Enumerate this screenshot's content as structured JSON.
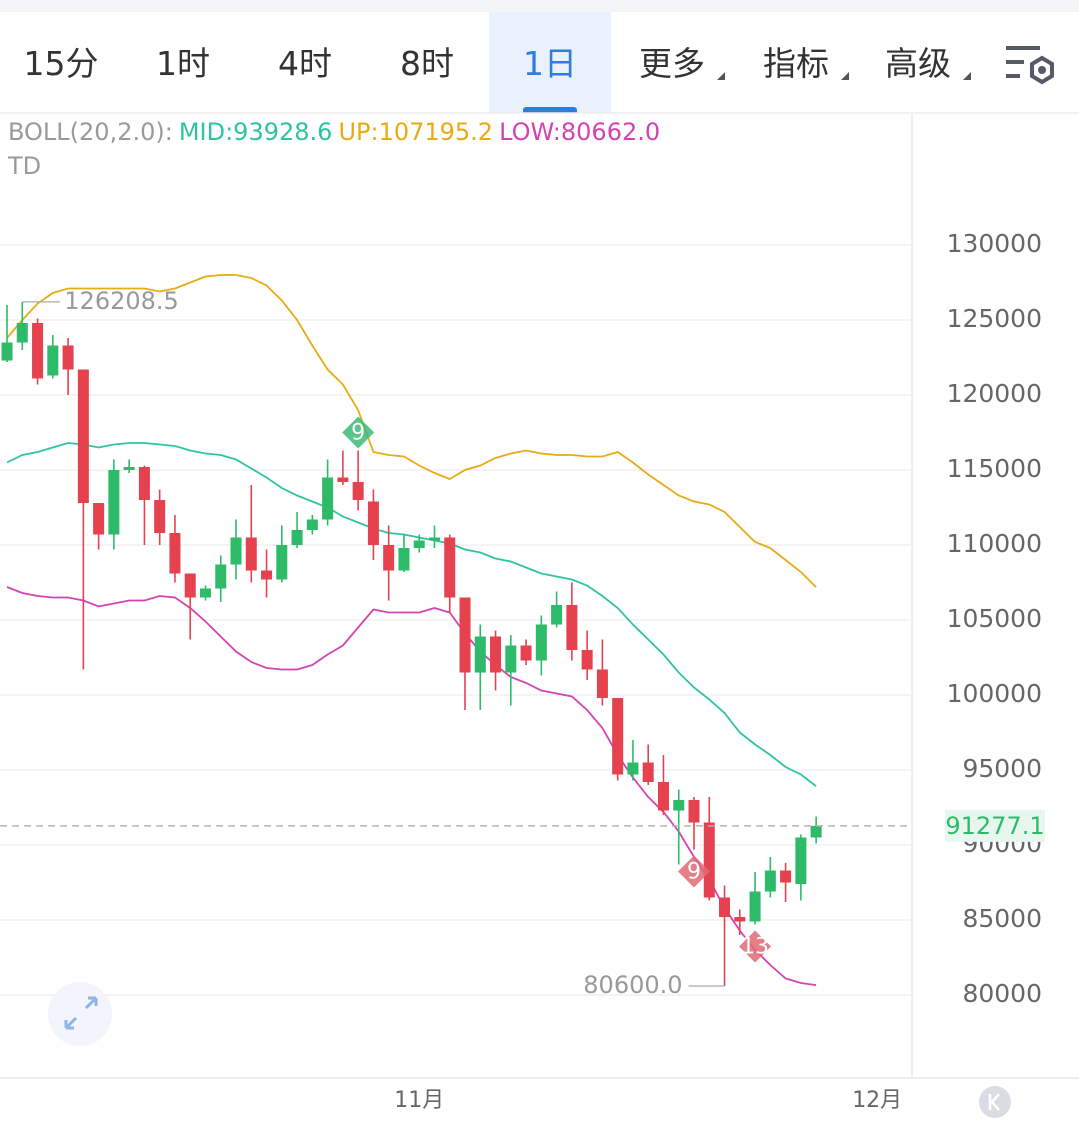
{
  "tabs": [
    "15分",
    "1时",
    "4时",
    "8时",
    "1日",
    "更多",
    "指标",
    "高级"
  ],
  "active_tab": 4,
  "chart_data": {
    "type": "candlestick",
    "indicator_label": "BOLL(20,2.0):",
    "td_label": "TD",
    "x": [
      0,
      1,
      2,
      3,
      4,
      5,
      6,
      7,
      8,
      9,
      10,
      11,
      12,
      13,
      14,
      15,
      16,
      17,
      18,
      19,
      20,
      21,
      22,
      23,
      24,
      25,
      26,
      27,
      28,
      29,
      30,
      31,
      32,
      33,
      34,
      35,
      36,
      37,
      38,
      39,
      40,
      41,
      42,
      43,
      44,
      45,
      46,
      47,
      48,
      49,
      50,
      51,
      52,
      53
    ],
    "xlim": [
      -0.46,
      59.28
    ],
    "xticks": [
      {
        "value": 27,
        "label": "11月"
      },
      {
        "value": 57,
        "label": "12月"
      }
    ],
    "open": [
      122300,
      123500,
      124800,
      121300,
      123300,
      121700,
      112800,
      110700,
      115000,
      115200,
      113000,
      110800,
      108100,
      106500,
      107100,
      108700,
      110500,
      108300,
      107700,
      110000,
      111000,
      111700,
      114500,
      114200,
      112900,
      110000,
      108300,
      109800,
      110300,
      110500,
      106500,
      101500,
      103900,
      101500,
      103300,
      102300,
      104700,
      106000,
      103000,
      101700,
      99800,
      94700,
      95500,
      94200,
      92300,
      93000,
      91500,
      86500,
      85200,
      84900,
      86900,
      88300,
      87400,
      90500
    ],
    "high": [
      126000,
      126208.5,
      125100,
      124000,
      123800,
      121700,
      112800,
      115700,
      115700,
      115300,
      113700,
      112000,
      108100,
      107300,
      109300,
      111700,
      114000,
      109700,
      111300,
      112200,
      112000,
      115700,
      116300,
      116300,
      113700,
      111300,
      110700,
      110700,
      111300,
      110700,
      106500,
      104700,
      104300,
      104000,
      103700,
      105300,
      106900,
      107500,
      104300,
      103700,
      99800,
      97000,
      96700,
      96000,
      93700,
      93200,
      93200,
      87300,
      85700,
      88200,
      89200,
      88800,
      90700,
      91900
    ],
    "low": [
      122200,
      123000,
      120700,
      121100,
      120000,
      101700,
      109700,
      109700,
      114800,
      110000,
      110000,
      107500,
      103700,
      106300,
      106200,
      107700,
      107500,
      106500,
      107500,
      109800,
      110700,
      111300,
      114000,
      112300,
      109000,
      106300,
      108200,
      109500,
      109800,
      105500,
      99000,
      99000,
      100300,
      99300,
      102000,
      101300,
      104500,
      102300,
      101000,
      99300,
      94300,
      94300,
      94000,
      92000,
      88700,
      89700,
      86300,
      80600,
      84000,
      84700,
      86500,
      86200,
      86300,
      90100
    ],
    "close": [
      123500,
      124800,
      121100,
      123300,
      121700,
      112800,
      110700,
      115000,
      115200,
      113000,
      110800,
      108100,
      106500,
      107100,
      108700,
      110500,
      108300,
      107700,
      110000,
      111000,
      111700,
      114500,
      114200,
      113000,
      110000,
      108300,
      109800,
      110300,
      110500,
      106500,
      101500,
      103900,
      101500,
      103300,
      102300,
      104700,
      106000,
      103000,
      101700,
      99800,
      94700,
      95500,
      94200,
      92300,
      93000,
      91500,
      86500,
      85200,
      84900,
      86900,
      88300,
      87500,
      90500,
      91277.1
    ],
    "up_color": "#2dbb6a",
    "down_color": "#e5414f",
    "series": [
      {
        "name": "MID:93928.6",
        "color": "#2ec4a0",
        "values": [
          115500,
          116000,
          116200,
          116500,
          116800,
          116700,
          116500,
          116700,
          116800,
          116800,
          116700,
          116600,
          116300,
          116100,
          116000,
          115700,
          115100,
          114500,
          113800,
          113300,
          112900,
          112500,
          111900,
          111500,
          111100,
          110800,
          110700,
          110500,
          110300,
          110100,
          109700,
          109500,
          109100,
          108900,
          108500,
          108100,
          107900,
          107700,
          107300,
          106600,
          105800,
          104700,
          103700,
          102700,
          101500,
          100500,
          99700,
          98800,
          97500,
          96700,
          96000,
          95200,
          94700,
          93928.6
        ]
      },
      {
        "name": "UP:107195.2",
        "color": "#e9ab12",
        "values": [
          123800,
          125000,
          126100,
          126800,
          127100,
          127100,
          127100,
          127100,
          127100,
          127100,
          126900,
          127100,
          127500,
          127900,
          128000,
          128000,
          127800,
          127300,
          126300,
          125000,
          123300,
          121700,
          120700,
          119000,
          116200,
          116000,
          115900,
          115300,
          114800,
          114400,
          115000,
          115300,
          115800,
          116100,
          116300,
          116100,
          116000,
          116000,
          115900,
          115900,
          116200,
          115500,
          114700,
          114000,
          113300,
          112900,
          112700,
          112200,
          111200,
          110200,
          109800,
          109000,
          108200,
          107195.2
        ]
      },
      {
        "name": "LOW:80662.0",
        "color": "#d543b2",
        "values": [
          107200,
          106800,
          106600,
          106500,
          106500,
          106300,
          105900,
          106100,
          106300,
          106300,
          106600,
          106500,
          105800,
          104900,
          103900,
          102900,
          102200,
          101800,
          101700,
          101700,
          102000,
          102700,
          103300,
          104500,
          105700,
          105500,
          105500,
          105500,
          105800,
          105500,
          104100,
          102900,
          102000,
          101200,
          100800,
          100300,
          100100,
          99900,
          99000,
          97800,
          96000,
          94500,
          93200,
          92200,
          90900,
          89200,
          87700,
          85800,
          84300,
          83000,
          82000,
          81100,
          80800,
          80662
        ]
      }
    ],
    "ylim": [
      74467,
      138667
    ],
    "yticks": [
      80000,
      85000,
      90000,
      95000,
      100000,
      105000,
      110000,
      115000,
      120000,
      125000,
      130000
    ],
    "grid": true,
    "max_label": {
      "index": 1,
      "label": "126208.5"
    },
    "min_label": {
      "index": 47,
      "label": "80600.0"
    },
    "last_price": {
      "index": 53,
      "label": "91277.1"
    },
    "td_marks": [
      {
        "index": 23,
        "label": "9",
        "color": "#3dbb75",
        "side": "above"
      },
      {
        "index": 45,
        "label": "9",
        "color": "#e06a73",
        "side": "below"
      },
      {
        "index": 49,
        "label": "13",
        "color": "#e06a73",
        "side": "below"
      }
    ]
  }
}
